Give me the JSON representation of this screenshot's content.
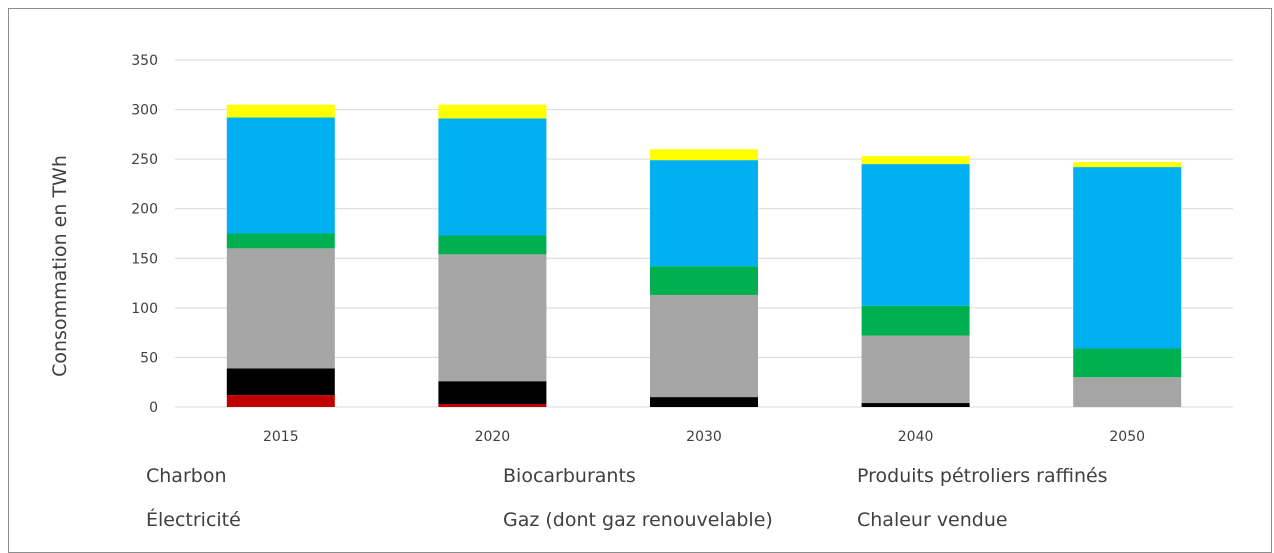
{
  "chart_data": {
    "type": "bar",
    "stacked": true,
    "ylabel": "Consommation en TWh",
    "ylim": [
      0,
      350
    ],
    "yticks": [
      0,
      50,
      100,
      150,
      200,
      250,
      300,
      350
    ],
    "grid": true,
    "legend_position": "bottom",
    "categories": [
      "2015",
      "2020",
      "2030",
      "2040",
      "2050"
    ],
    "series": [
      {
        "name": "Charbon",
        "color": "#c00000",
        "values": [
          12,
          3,
          0,
          0,
          0
        ]
      },
      {
        "name": "Biocarburants",
        "color": "#000000",
        "values": [
          27,
          23,
          10,
          4,
          0
        ]
      },
      {
        "name": "Produits pétroliers raffinés",
        "color": "#a5a5a5",
        "values": [
          121,
          128,
          103,
          68,
          30
        ]
      },
      {
        "name": "Électricité",
        "color": "#00b050",
        "values": [
          15,
          19,
          29,
          30,
          29
        ]
      },
      {
        "name": "Gaz (dont gaz renouvelable)",
        "color": "#00b0f0",
        "values": [
          117,
          118,
          107,
          143,
          183
        ]
      },
      {
        "name": "Chaleur vendue",
        "color": "#ffff00",
        "values": [
          13,
          14,
          11,
          8,
          5
        ]
      }
    ]
  }
}
